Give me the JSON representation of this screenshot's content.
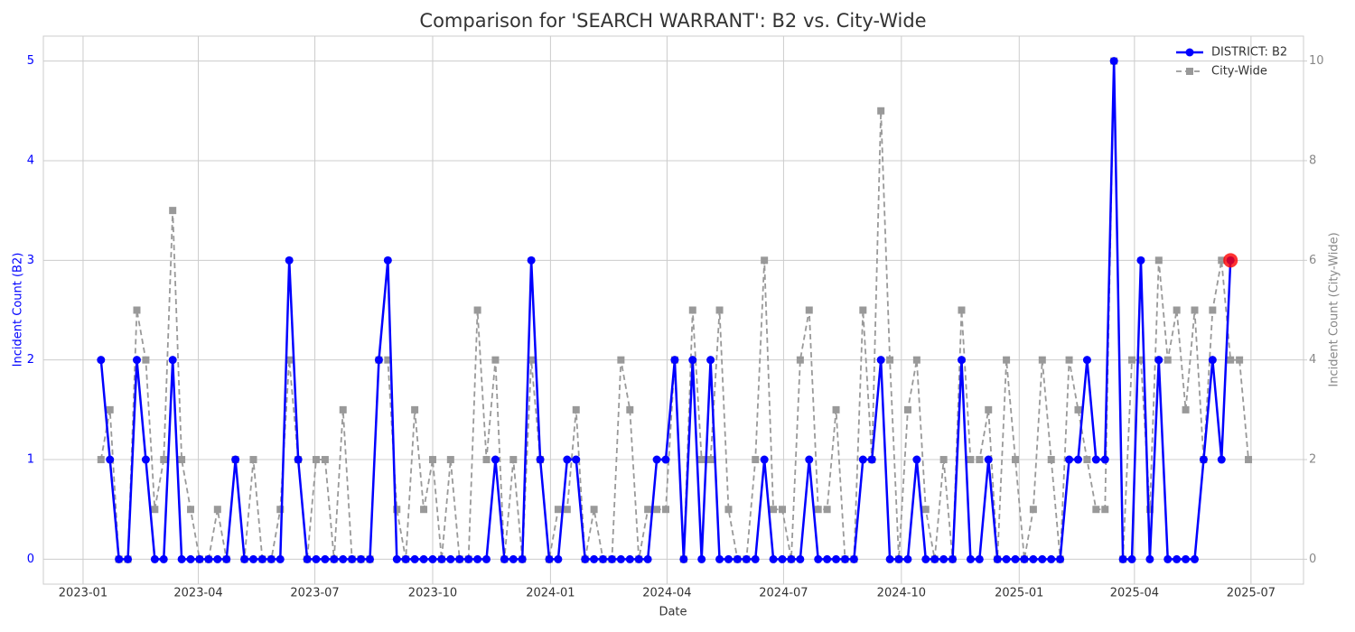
{
  "chart_data": {
    "type": "line",
    "title": "Comparison for 'SEARCH WARRANT': B2 vs. City-Wide",
    "x_label": "Date",
    "y_label": "Incident Count (B2)",
    "y2_label": "Incident Count (City-Wide)",
    "x": [
      "2023-01-15",
      "2023-01-22",
      "2023-01-29",
      "2023-02-05",
      "2023-02-12",
      "2023-02-19",
      "2023-02-26",
      "2023-03-05",
      "2023-03-12",
      "2023-03-19",
      "2023-03-26",
      "2023-04-02",
      "2023-04-09",
      "2023-04-16",
      "2023-04-23",
      "2023-04-30",
      "2023-05-07",
      "2023-05-14",
      "2023-05-21",
      "2023-05-28",
      "2023-06-04",
      "2023-06-11",
      "2023-06-18",
      "2023-06-25",
      "2023-07-02",
      "2023-07-09",
      "2023-07-16",
      "2023-07-23",
      "2023-07-30",
      "2023-08-06",
      "2023-08-13",
      "2023-08-20",
      "2023-08-27",
      "2023-09-03",
      "2023-09-10",
      "2023-09-17",
      "2023-09-24",
      "2023-10-01",
      "2023-10-08",
      "2023-10-15",
      "2023-10-22",
      "2023-10-29",
      "2023-11-05",
      "2023-11-12",
      "2023-11-19",
      "2023-11-26",
      "2023-12-03",
      "2023-12-10",
      "2023-12-17",
      "2023-12-24",
      "2023-12-31",
      "2024-01-07",
      "2024-01-14",
      "2024-01-21",
      "2024-01-28",
      "2024-02-04",
      "2024-02-11",
      "2024-02-18",
      "2024-02-25",
      "2024-03-03",
      "2024-03-10",
      "2024-03-17",
      "2024-03-24",
      "2024-03-31",
      "2024-04-07",
      "2024-04-14",
      "2024-04-21",
      "2024-04-28",
      "2024-05-05",
      "2024-05-12",
      "2024-05-19",
      "2024-05-26",
      "2024-06-02",
      "2024-06-09",
      "2024-06-16",
      "2024-06-23",
      "2024-06-30",
      "2024-07-07",
      "2024-07-14",
      "2024-07-21",
      "2024-07-28",
      "2024-08-04",
      "2024-08-11",
      "2024-08-18",
      "2024-08-25",
      "2024-09-01",
      "2024-09-08",
      "2024-09-15",
      "2024-09-22",
      "2024-09-29",
      "2024-10-06",
      "2024-10-13",
      "2024-10-20",
      "2024-10-27",
      "2024-11-03",
      "2024-11-10",
      "2024-11-17",
      "2024-11-24",
      "2024-12-01",
      "2024-12-08",
      "2024-12-15",
      "2024-12-22",
      "2024-12-29",
      "2025-01-05",
      "2025-01-12",
      "2025-01-19",
      "2025-01-26",
      "2025-02-02",
      "2025-02-09",
      "2025-02-16",
      "2025-02-23",
      "2025-03-02",
      "2025-03-09",
      "2025-03-16",
      "2025-03-23",
      "2025-03-30",
      "2025-04-06",
      "2025-04-13",
      "2025-04-20",
      "2025-04-27",
      "2025-05-04",
      "2025-05-11",
      "2025-05-18",
      "2025-05-25",
      "2025-06-01",
      "2025-06-08",
      "2025-06-15",
      "2025-06-22",
      "2025-06-29"
    ],
    "series": [
      {
        "name": "DISTRICT: B2",
        "color": "blue",
        "marker": "circle",
        "dash": false,
        "axis": "y",
        "values": [
          2,
          1,
          0,
          0,
          2,
          1,
          0,
          0,
          2,
          0,
          0,
          0,
          0,
          0,
          0,
          1,
          0,
          0,
          0,
          0,
          0,
          3,
          1,
          0,
          0,
          0,
          0,
          0,
          0,
          0,
          0,
          2,
          3,
          0,
          0,
          0,
          0,
          0,
          0,
          0,
          0,
          0,
          0,
          0,
          1,
          0,
          0,
          0,
          3,
          1,
          0,
          0,
          1,
          1,
          0,
          0,
          0,
          0,
          0,
          0,
          0,
          0,
          1,
          1,
          2,
          0,
          2,
          0,
          2,
          0,
          0,
          0,
          0,
          0,
          1,
          0,
          0,
          0,
          0,
          1,
          0,
          0,
          0,
          0,
          0,
          1,
          1,
          2,
          0,
          0,
          0,
          1,
          0,
          0,
          0,
          0,
          2,
          0,
          0,
          1,
          0,
          0,
          0,
          0,
          0,
          0,
          0,
          0,
          1,
          1,
          2,
          1,
          1,
          5,
          0,
          0,
          3,
          0,
          2,
          0,
          0,
          0,
          0,
          1,
          2,
          1,
          3,
          null,
          null
        ]
      },
      {
        "name": "City-Wide",
        "color": "#999999",
        "marker": "square",
        "dash": true,
        "axis": "y2",
        "values": [
          2,
          3,
          0,
          0,
          5,
          4,
          1,
          2,
          7,
          2,
          1,
          0,
          0,
          1,
          0,
          2,
          0,
          2,
          0,
          0,
          1,
          4,
          2,
          0,
          2,
          2,
          0,
          3,
          0,
          0,
          0,
          4,
          4,
          1,
          0,
          3,
          1,
          2,
          0,
          2,
          0,
          0,
          5,
          2,
          4,
          0,
          2,
          0,
          4,
          2,
          0,
          1,
          1,
          3,
          0,
          1,
          0,
          0,
          4,
          3,
          0,
          1,
          1,
          1,
          4,
          0,
          5,
          2,
          2,
          5,
          1,
          0,
          0,
          2,
          6,
          1,
          1,
          0,
          4,
          5,
          1,
          1,
          3,
          0,
          0,
          5,
          2,
          9,
          4,
          0,
          3,
          4,
          1,
          0,
          2,
          0,
          5,
          2,
          2,
          3,
          0,
          4,
          2,
          0,
          1,
          4,
          2,
          0,
          4,
          3,
          2,
          1,
          1,
          10,
          0,
          4,
          4,
          1,
          6,
          4,
          5,
          3,
          5,
          2,
          5,
          6,
          4,
          4,
          2
        ]
      }
    ],
    "highlight_color": "red",
    "xlim": [
      "2022-12-01",
      "2025-08-11"
    ],
    "xticks": [
      {
        "value": "2023-01-01",
        "label": "2023-01"
      },
      {
        "value": "2023-04-01",
        "label": "2023-04"
      },
      {
        "value": "2023-07-01",
        "label": "2023-07"
      },
      {
        "value": "2023-10-01",
        "label": "2023-10"
      },
      {
        "value": "2024-01-01",
        "label": "2024-01"
      },
      {
        "value": "2024-04-01",
        "label": "2024-04"
      },
      {
        "value": "2024-07-01",
        "label": "2024-07"
      },
      {
        "value": "2024-10-01",
        "label": "2024-10"
      },
      {
        "value": "2025-01-01",
        "label": "2025-01"
      },
      {
        "value": "2025-04-01",
        "label": "2025-04"
      },
      {
        "value": "2025-07-01",
        "label": "2025-07"
      }
    ],
    "ylim": [
      -0.25,
      5.25
    ],
    "yticks": [
      0,
      1,
      2,
      3,
      4,
      5
    ],
    "y2lim": [
      -0.5,
      10.5
    ],
    "y2ticks": [
      0,
      2,
      4,
      6,
      8,
      10
    ],
    "grid": true,
    "legend": "upper right"
  }
}
